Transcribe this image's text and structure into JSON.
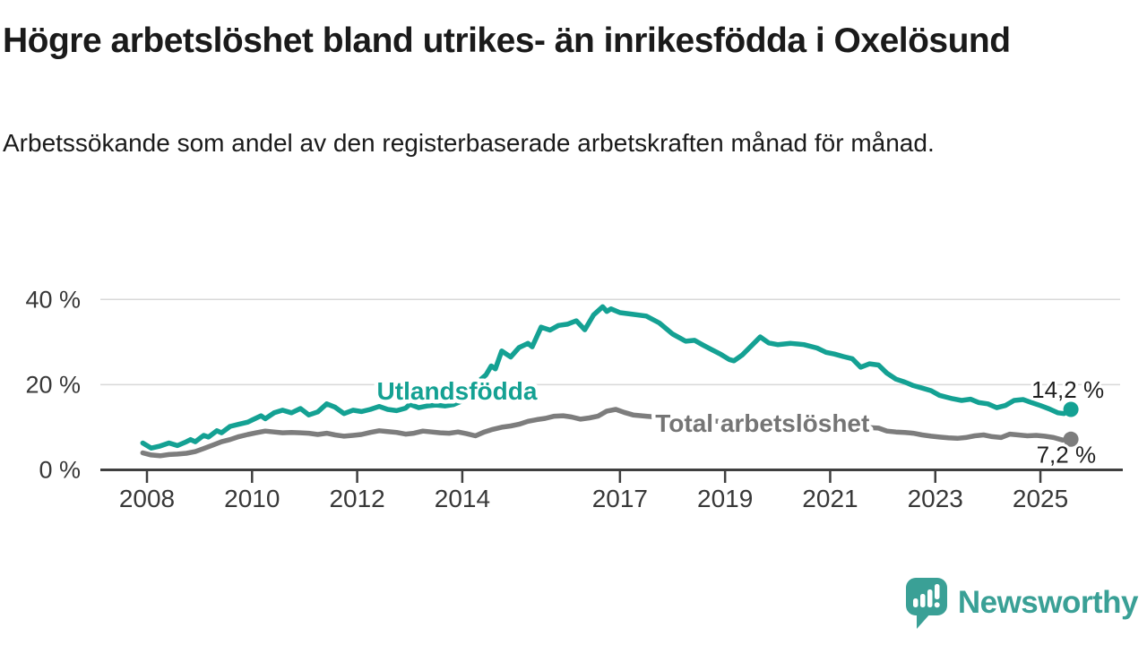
{
  "header": {
    "title": "Högre arbetslöshet bland utrikes- än inrikesfödda i Oxelösund",
    "subtitle": "Arbetssökande som andel av den registerbaserade arbetskraften månad för månad."
  },
  "footer": {
    "brand": "Newsworthy",
    "brand_color": "#3aa096"
  },
  "chart_data": {
    "type": "line",
    "title": "Högre arbetslöshet bland utrikes- än inrikesfödda i Oxelösund",
    "subtitle": "Arbetssökande som andel av den registerbaserade arbetskraften månad för månad.",
    "xlabel": "",
    "ylabel": "",
    "grid": "horizontal",
    "legend_position": "inline-labels",
    "xlim": [
      2007.8,
      2026.5
    ],
    "ylim": [
      0,
      40
    ],
    "x_ticks": [
      2008,
      2010,
      2012,
      2014,
      2017,
      2019,
      2021,
      2023,
      2025
    ],
    "x_tick_labels": [
      "2008",
      "2010",
      "2012",
      "2014",
      "2017",
      "2019",
      "2021",
      "2023",
      "2025"
    ],
    "y_ticks": [
      0,
      20,
      40
    ],
    "y_tick_labels": [
      "0 %",
      "20 %",
      "40 %"
    ],
    "axis_color": "#3f3f3f",
    "grid_color": "#d8d8d8",
    "tick_label_color": "#383838",
    "value_label_color": "#1f1f1f",
    "series": [
      {
        "name": "Utlandsfödda",
        "color": "#14a193",
        "label_color": "#14a193",
        "end_label": "14,2 %",
        "end_value": 14.2,
        "label_anchor": {
          "year": 2013.9,
          "pct": 16.5
        },
        "points": [
          [
            2007.92,
            6.3
          ],
          [
            2008.08,
            5.1
          ],
          [
            2008.25,
            5.6
          ],
          [
            2008.42,
            6.3
          ],
          [
            2008.58,
            5.7
          ],
          [
            2008.75,
            6.6
          ],
          [
            2008.83,
            7.1
          ],
          [
            2008.92,
            6.6
          ],
          [
            2009.08,
            8.1
          ],
          [
            2009.17,
            7.7
          ],
          [
            2009.33,
            9.2
          ],
          [
            2009.42,
            8.7
          ],
          [
            2009.58,
            10.2
          ],
          [
            2009.75,
            10.7
          ],
          [
            2009.92,
            11.2
          ],
          [
            2010.0,
            11.7
          ],
          [
            2010.17,
            12.7
          ],
          [
            2010.25,
            12.0
          ],
          [
            2010.42,
            13.4
          ],
          [
            2010.58,
            14.0
          ],
          [
            2010.75,
            13.4
          ],
          [
            2010.92,
            14.4
          ],
          [
            2011.08,
            12.9
          ],
          [
            2011.25,
            13.6
          ],
          [
            2011.42,
            15.5
          ],
          [
            2011.58,
            14.7
          ],
          [
            2011.75,
            13.2
          ],
          [
            2011.92,
            14.0
          ],
          [
            2012.08,
            13.7
          ],
          [
            2012.25,
            14.2
          ],
          [
            2012.42,
            14.9
          ],
          [
            2012.58,
            14.2
          ],
          [
            2012.75,
            13.9
          ],
          [
            2012.92,
            14.5
          ],
          [
            2013.0,
            15.4
          ],
          [
            2013.17,
            14.6
          ],
          [
            2013.33,
            15.0
          ],
          [
            2013.5,
            15.2
          ],
          [
            2013.67,
            15.0
          ],
          [
            2013.83,
            15.3
          ],
          [
            2014.0,
            16.2
          ],
          [
            2014.17,
            18.5
          ],
          [
            2014.33,
            21.0
          ],
          [
            2014.45,
            22.3
          ],
          [
            2014.55,
            24.4
          ],
          [
            2014.63,
            23.7
          ],
          [
            2014.75,
            27.9
          ],
          [
            2014.92,
            26.5
          ],
          [
            2015.08,
            28.7
          ],
          [
            2015.25,
            29.7
          ],
          [
            2015.33,
            28.9
          ],
          [
            2015.5,
            33.5
          ],
          [
            2015.67,
            32.8
          ],
          [
            2015.83,
            33.9
          ],
          [
            2016.0,
            34.2
          ],
          [
            2016.17,
            35.0
          ],
          [
            2016.33,
            32.9
          ],
          [
            2016.5,
            36.4
          ],
          [
            2016.67,
            38.3
          ],
          [
            2016.75,
            37.2
          ],
          [
            2016.83,
            37.8
          ],
          [
            2017.0,
            36.9
          ],
          [
            2017.25,
            36.5
          ],
          [
            2017.5,
            36.1
          ],
          [
            2017.75,
            34.5
          ],
          [
            2018.0,
            31.9
          ],
          [
            2018.25,
            30.2
          ],
          [
            2018.42,
            30.4
          ],
          [
            2018.58,
            29.3
          ],
          [
            2018.75,
            28.2
          ],
          [
            2018.92,
            27.1
          ],
          [
            2019.08,
            25.9
          ],
          [
            2019.17,
            25.6
          ],
          [
            2019.33,
            27.0
          ],
          [
            2019.5,
            29.1
          ],
          [
            2019.67,
            31.2
          ],
          [
            2019.83,
            29.8
          ],
          [
            2020.0,
            29.4
          ],
          [
            2020.25,
            29.7
          ],
          [
            2020.5,
            29.4
          ],
          [
            2020.75,
            28.6
          ],
          [
            2020.92,
            27.6
          ],
          [
            2021.08,
            27.2
          ],
          [
            2021.25,
            26.6
          ],
          [
            2021.42,
            26.1
          ],
          [
            2021.58,
            24.1
          ],
          [
            2021.75,
            24.9
          ],
          [
            2021.92,
            24.6
          ],
          [
            2022.08,
            22.7
          ],
          [
            2022.25,
            21.3
          ],
          [
            2022.42,
            20.6
          ],
          [
            2022.58,
            19.8
          ],
          [
            2022.75,
            19.2
          ],
          [
            2022.92,
            18.6
          ],
          [
            2023.08,
            17.5
          ],
          [
            2023.33,
            16.7
          ],
          [
            2023.5,
            16.3
          ],
          [
            2023.67,
            16.6
          ],
          [
            2023.83,
            15.8
          ],
          [
            2024.0,
            15.5
          ],
          [
            2024.17,
            14.6
          ],
          [
            2024.33,
            15.1
          ],
          [
            2024.5,
            16.3
          ],
          [
            2024.67,
            16.5
          ],
          [
            2024.83,
            15.8
          ],
          [
            2025.0,
            15.1
          ],
          [
            2025.17,
            14.3
          ],
          [
            2025.33,
            13.4
          ],
          [
            2025.45,
            13.2
          ],
          [
            2025.58,
            14.2
          ]
        ]
      },
      {
        "name": "Total arbetslöshet",
        "color": "#7d7d7d",
        "label_color": "#757575",
        "end_label": "7,2 %",
        "end_value": 7.2,
        "label_anchor": {
          "year": 2019.71,
          "pct": 8.9
        },
        "points": [
          [
            2007.92,
            4.0
          ],
          [
            2008.08,
            3.5
          ],
          [
            2008.25,
            3.3
          ],
          [
            2008.42,
            3.6
          ],
          [
            2008.58,
            3.7
          ],
          [
            2008.75,
            3.9
          ],
          [
            2008.92,
            4.3
          ],
          [
            2009.08,
            5.0
          ],
          [
            2009.25,
            5.8
          ],
          [
            2009.42,
            6.6
          ],
          [
            2009.58,
            7.1
          ],
          [
            2009.75,
            7.8
          ],
          [
            2009.92,
            8.3
          ],
          [
            2010.08,
            8.7
          ],
          [
            2010.25,
            9.1
          ],
          [
            2010.42,
            8.9
          ],
          [
            2010.58,
            8.7
          ],
          [
            2010.75,
            8.8
          ],
          [
            2010.92,
            8.7
          ],
          [
            2011.08,
            8.6
          ],
          [
            2011.25,
            8.3
          ],
          [
            2011.42,
            8.6
          ],
          [
            2011.58,
            8.2
          ],
          [
            2011.75,
            7.9
          ],
          [
            2011.92,
            8.1
          ],
          [
            2012.08,
            8.3
          ],
          [
            2012.25,
            8.8
          ],
          [
            2012.42,
            9.2
          ],
          [
            2012.58,
            9.0
          ],
          [
            2012.75,
            8.8
          ],
          [
            2012.92,
            8.4
          ],
          [
            2013.08,
            8.6
          ],
          [
            2013.25,
            9.1
          ],
          [
            2013.42,
            8.9
          ],
          [
            2013.58,
            8.7
          ],
          [
            2013.75,
            8.6
          ],
          [
            2013.92,
            8.9
          ],
          [
            2014.08,
            8.5
          ],
          [
            2014.25,
            8.0
          ],
          [
            2014.42,
            8.9
          ],
          [
            2014.58,
            9.5
          ],
          [
            2014.75,
            10.0
          ],
          [
            2014.92,
            10.3
          ],
          [
            2015.08,
            10.7
          ],
          [
            2015.25,
            11.4
          ],
          [
            2015.42,
            11.8
          ],
          [
            2015.58,
            12.1
          ],
          [
            2015.75,
            12.6
          ],
          [
            2015.92,
            12.7
          ],
          [
            2016.08,
            12.4
          ],
          [
            2016.25,
            11.9
          ],
          [
            2016.42,
            12.2
          ],
          [
            2016.58,
            12.6
          ],
          [
            2016.75,
            13.8
          ],
          [
            2016.92,
            14.2
          ],
          [
            2017.08,
            13.5
          ],
          [
            2017.25,
            12.9
          ],
          [
            2017.5,
            12.6
          ],
          [
            2018.0,
            12.1
          ],
          [
            2018.5,
            11.7
          ],
          [
            2019.0,
            11.3
          ],
          [
            2019.5,
            11.1
          ],
          [
            2020.0,
            11.4
          ],
          [
            2020.5,
            11.1
          ],
          [
            2021.0,
            10.6
          ],
          [
            2021.5,
            10.1
          ],
          [
            2021.92,
            9.8
          ],
          [
            2022.08,
            9.1
          ],
          [
            2022.25,
            8.9
          ],
          [
            2022.42,
            8.8
          ],
          [
            2022.58,
            8.6
          ],
          [
            2022.75,
            8.2
          ],
          [
            2022.92,
            7.9
          ],
          [
            2023.08,
            7.7
          ],
          [
            2023.25,
            7.5
          ],
          [
            2023.42,
            7.4
          ],
          [
            2023.58,
            7.6
          ],
          [
            2023.75,
            8.0
          ],
          [
            2023.92,
            8.2
          ],
          [
            2024.08,
            7.8
          ],
          [
            2024.25,
            7.6
          ],
          [
            2024.42,
            8.4
          ],
          [
            2024.58,
            8.2
          ],
          [
            2024.75,
            8.0
          ],
          [
            2024.92,
            8.1
          ],
          [
            2025.08,
            7.9
          ],
          [
            2025.25,
            7.6
          ],
          [
            2025.42,
            7.0
          ],
          [
            2025.58,
            7.2
          ]
        ]
      }
    ]
  }
}
